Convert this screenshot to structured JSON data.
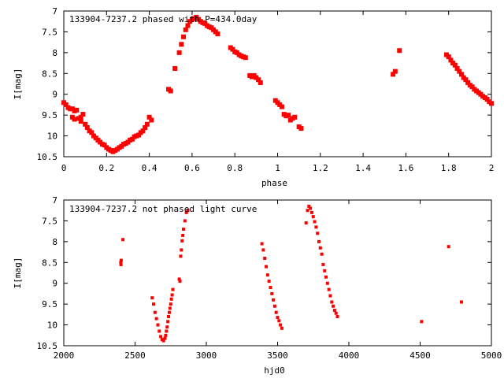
{
  "chart_data": [
    {
      "type": "scatter",
      "title": "133904-7237.2 phased with P=434.0day",
      "xlabel": "phase",
      "ylabel": "I[mag]",
      "xlim": [
        0,
        2
      ],
      "ylim": [
        10.5,
        7
      ],
      "y_inverted": true,
      "x_ticks": [
        "0",
        "0.2",
        "0.4",
        "0.6",
        "0.8",
        "1",
        "1.2",
        "1.4",
        "1.6",
        "1.8",
        "2"
      ],
      "y_ticks": [
        "7",
        "7.5",
        "8",
        "8.5",
        "9",
        "9.5",
        "10",
        "10.5"
      ],
      "grid": false,
      "marker_color": "#ff0000",
      "series": [
        {
          "points": [
            [
              0.0,
              9.2
            ],
            [
              0.01,
              9.25
            ],
            [
              0.02,
              9.32
            ],
            [
              0.03,
              9.35
            ],
            [
              0.04,
              9.35
            ],
            [
              0.05,
              9.4
            ],
            [
              0.06,
              9.38
            ],
            [
              0.04,
              9.55
            ],
            [
              0.05,
              9.6
            ],
            [
              0.07,
              9.58
            ],
            [
              0.08,
              9.55
            ],
            [
              0.08,
              9.65
            ],
            [
              0.09,
              9.48
            ],
            [
              0.1,
              9.72
            ],
            [
              0.11,
              9.8
            ],
            [
              0.12,
              9.88
            ],
            [
              0.13,
              9.92
            ],
            [
              0.14,
              10.0
            ],
            [
              0.15,
              10.05
            ],
            [
              0.16,
              10.1
            ],
            [
              0.17,
              10.15
            ],
            [
              0.18,
              10.2
            ],
            [
              0.19,
              10.22
            ],
            [
              0.2,
              10.28
            ],
            [
              0.21,
              10.32
            ],
            [
              0.22,
              10.35
            ],
            [
              0.23,
              10.38
            ],
            [
              0.24,
              10.35
            ],
            [
              0.25,
              10.32
            ],
            [
              0.26,
              10.28
            ],
            [
              0.27,
              10.25
            ],
            [
              0.28,
              10.2
            ],
            [
              0.29,
              10.18
            ],
            [
              0.3,
              10.15
            ],
            [
              0.31,
              10.1
            ],
            [
              0.32,
              10.08
            ],
            [
              0.33,
              10.02
            ],
            [
              0.34,
              10.0
            ],
            [
              0.35,
              9.98
            ],
            [
              0.36,
              9.92
            ],
            [
              0.37,
              9.88
            ],
            [
              0.38,
              9.8
            ],
            [
              0.39,
              9.72
            ],
            [
              0.4,
              9.55
            ],
            [
              0.41,
              9.62
            ],
            [
              0.49,
              8.88
            ],
            [
              0.5,
              8.92
            ],
            [
              0.52,
              8.38
            ],
            [
              0.54,
              8.0
            ],
            [
              0.55,
              7.8
            ],
            [
              0.56,
              7.62
            ],
            [
              0.57,
              7.45
            ],
            [
              0.58,
              7.35
            ],
            [
              0.59,
              7.25
            ],
            [
              0.6,
              7.2
            ],
            [
              0.61,
              7.18
            ],
            [
              0.62,
              7.15
            ],
            [
              0.63,
              7.2
            ],
            [
              0.64,
              7.25
            ],
            [
              0.65,
              7.28
            ],
            [
              0.66,
              7.3
            ],
            [
              0.67,
              7.35
            ],
            [
              0.68,
              7.38
            ],
            [
              0.69,
              7.4
            ],
            [
              0.7,
              7.45
            ],
            [
              0.71,
              7.5
            ],
            [
              0.72,
              7.55
            ],
            [
              0.78,
              7.88
            ],
            [
              0.79,
              7.92
            ],
            [
              0.8,
              7.98
            ],
            [
              0.81,
              8.0
            ],
            [
              0.82,
              8.05
            ],
            [
              0.83,
              8.08
            ],
            [
              0.84,
              8.1
            ],
            [
              0.85,
              8.12
            ],
            [
              0.87,
              8.55
            ],
            [
              0.88,
              8.58
            ],
            [
              0.89,
              8.55
            ],
            [
              0.9,
              8.6
            ],
            [
              0.91,
              8.65
            ],
            [
              0.92,
              8.72
            ],
            [
              0.99,
              9.15
            ],
            [
              1.0,
              9.2
            ],
            [
              1.01,
              9.25
            ],
            [
              1.02,
              9.3
            ],
            [
              1.03,
              9.48
            ],
            [
              1.04,
              9.52
            ],
            [
              1.05,
              9.5
            ],
            [
              1.06,
              9.62
            ],
            [
              1.07,
              9.58
            ],
            [
              1.08,
              9.55
            ],
            [
              1.1,
              9.78
            ],
            [
              1.11,
              9.82
            ],
            [
              1.54,
              8.52
            ],
            [
              1.55,
              8.45
            ],
            [
              1.57,
              7.95
            ],
            [
              1.79,
              8.05
            ],
            [
              1.8,
              8.1
            ],
            [
              1.81,
              8.18
            ],
            [
              1.82,
              8.25
            ],
            [
              1.83,
              8.3
            ],
            [
              1.84,
              8.38
            ],
            [
              1.85,
              8.45
            ],
            [
              1.86,
              8.52
            ],
            [
              1.87,
              8.6
            ],
            [
              1.88,
              8.65
            ],
            [
              1.89,
              8.72
            ],
            [
              1.9,
              8.78
            ],
            [
              1.91,
              8.82
            ],
            [
              1.92,
              8.88
            ],
            [
              1.93,
              8.92
            ],
            [
              1.94,
              8.96
            ],
            [
              1.95,
              9.0
            ],
            [
              1.96,
              9.05
            ],
            [
              1.97,
              9.08
            ],
            [
              1.98,
              9.12
            ],
            [
              1.99,
              9.18
            ],
            [
              2.0,
              9.22
            ]
          ]
        }
      ]
    },
    {
      "type": "scatter",
      "title": "133904-7237.2 not phased light curve",
      "xlabel": "hjd0",
      "ylabel": "I[mag]",
      "xlim": [
        2000,
        5000
      ],
      "ylim": [
        10.5,
        7
      ],
      "y_inverted": true,
      "x_ticks": [
        "2000",
        "2500",
        "3000",
        "3500",
        "4000",
        "4500",
        "5000"
      ],
      "y_ticks": [
        "7",
        "7.5",
        "8",
        "8.5",
        "9",
        "9.5",
        "10",
        "10.5"
      ],
      "grid": false,
      "marker_color": "#ff0000",
      "series": [
        {
          "points": [
            [
              2400,
              8.5
            ],
            [
              2401,
              8.55
            ],
            [
              2403,
              8.45
            ],
            [
              2415,
              7.95
            ],
            [
              2620,
              9.35
            ],
            [
              2630,
              9.5
            ],
            [
              2640,
              9.7
            ],
            [
              2650,
              9.85
            ],
            [
              2660,
              10.0
            ],
            [
              2670,
              10.15
            ],
            [
              2680,
              10.28
            ],
            [
              2690,
              10.35
            ],
            [
              2700,
              10.38
            ],
            [
              2710,
              10.32
            ],
            [
              2715,
              10.25
            ],
            [
              2720,
              10.15
            ],
            [
              2725,
              10.05
            ],
            [
              2730,
              9.92
            ],
            [
              2735,
              9.8
            ],
            [
              2740,
              9.7
            ],
            [
              2745,
              9.6
            ],
            [
              2750,
              9.5
            ],
            [
              2755,
              9.38
            ],
            [
              2760,
              9.28
            ],
            [
              2765,
              9.15
            ],
            [
              2810,
              8.9
            ],
            [
              2815,
              8.95
            ],
            [
              2820,
              8.35
            ],
            [
              2825,
              8.2
            ],
            [
              2830,
              7.98
            ],
            [
              2835,
              7.85
            ],
            [
              2840,
              7.7
            ],
            [
              2850,
              7.5
            ],
            [
              2860,
              7.3
            ],
            [
              2870,
              7.25
            ],
            [
              3390,
              8.05
            ],
            [
              3400,
              8.2
            ],
            [
              3410,
              8.4
            ],
            [
              3420,
              8.6
            ],
            [
              3430,
              8.8
            ],
            [
              3440,
              8.95
            ],
            [
              3450,
              9.1
            ],
            [
              3460,
              9.25
            ],
            [
              3470,
              9.4
            ],
            [
              3480,
              9.55
            ],
            [
              3490,
              9.7
            ],
            [
              3500,
              9.82
            ],
            [
              3510,
              9.9
            ],
            [
              3520,
              10.0
            ],
            [
              3530,
              10.08
            ],
            [
              3700,
              7.55
            ],
            [
              3710,
              7.25
            ],
            [
              3720,
              7.15
            ],
            [
              3730,
              7.2
            ],
            [
              3740,
              7.3
            ],
            [
              3750,
              7.4
            ],
            [
              3760,
              7.52
            ],
            [
              3770,
              7.65
            ],
            [
              3780,
              7.8
            ],
            [
              3790,
              8.0
            ],
            [
              3800,
              8.15
            ],
            [
              3810,
              8.3
            ],
            [
              3820,
              8.55
            ],
            [
              3830,
              8.7
            ],
            [
              3840,
              8.85
            ],
            [
              3850,
              9.0
            ],
            [
              3860,
              9.15
            ],
            [
              3870,
              9.3
            ],
            [
              3880,
              9.45
            ],
            [
              3890,
              9.55
            ],
            [
              3900,
              9.65
            ],
            [
              3910,
              9.72
            ],
            [
              3920,
              9.8
            ],
            [
              4510,
              9.92
            ],
            [
              4700,
              8.12
            ],
            [
              4790,
              9.45
            ]
          ]
        }
      ]
    }
  ]
}
